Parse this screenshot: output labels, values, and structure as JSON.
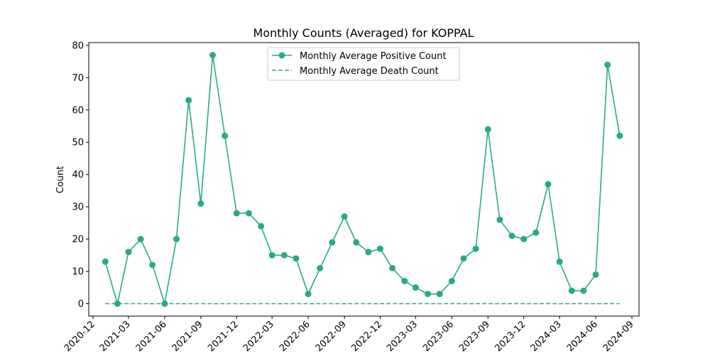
{
  "chart_data": {
    "type": "line",
    "title": "Monthly Counts (Averaged) for KOPPAL",
    "xlabel": "",
    "ylabel": "Count",
    "x": [
      "2021-01",
      "2021-02",
      "2021-03",
      "2021-04",
      "2021-05",
      "2021-06",
      "2021-07",
      "2021-08",
      "2021-09",
      "2021-10",
      "2021-11",
      "2021-12",
      "2022-01",
      "2022-02",
      "2022-03",
      "2022-04",
      "2022-05",
      "2022-06",
      "2022-07",
      "2022-08",
      "2022-09",
      "2022-10",
      "2022-11",
      "2022-12",
      "2023-01",
      "2023-02",
      "2023-03",
      "2023-04",
      "2023-05",
      "2023-06",
      "2023-07",
      "2023-08",
      "2023-09",
      "2023-10",
      "2023-11",
      "2023-12",
      "2024-01",
      "2024-02",
      "2024-03",
      "2024-04",
      "2024-05",
      "2024-06",
      "2024-07",
      "2024-08"
    ],
    "series": [
      {
        "name": "Monthly Average Positive Count",
        "color": "#2aab7b",
        "style": "solid-with-circle-markers",
        "values": [
          13,
          0,
          16,
          20,
          12,
          0,
          20,
          63,
          31,
          77,
          52,
          28,
          28,
          24,
          15,
          15,
          14,
          3,
          11,
          19,
          27,
          19,
          16,
          17,
          11,
          7,
          5,
          3,
          3,
          7,
          14,
          17,
          54,
          26,
          21,
          20,
          22,
          37,
          13,
          4,
          4,
          9,
          74,
          52
        ]
      },
      {
        "name": "Monthly Average Death Count",
        "color": "#2aab7b",
        "style": "dashed",
        "values": [
          0,
          0,
          0,
          0,
          0,
          0,
          0,
          0,
          0,
          0,
          0,
          0,
          0,
          0,
          0,
          0,
          0,
          0,
          0,
          0,
          0,
          0,
          0,
          0,
          0,
          0,
          0,
          0,
          0,
          0,
          0,
          0,
          0,
          0,
          0,
          0,
          0,
          0,
          0,
          0,
          0,
          0,
          0,
          0
        ]
      }
    ],
    "xticks": [
      "2020-12",
      "2021-03",
      "2021-06",
      "2021-09",
      "2021-12",
      "2022-03",
      "2022-06",
      "2022-09",
      "2022-12",
      "2023-03",
      "2023-06",
      "2023-09",
      "2023-12",
      "2024-03",
      "2024-06",
      "2024-09"
    ],
    "yticks": [
      0,
      10,
      20,
      30,
      40,
      50,
      60,
      70,
      80
    ],
    "ylim": [
      -3.85,
      80.85
    ],
    "xlim": [
      "2020-11-20",
      "2024-09-19"
    ],
    "grid": false,
    "legend_position": "upper center"
  }
}
